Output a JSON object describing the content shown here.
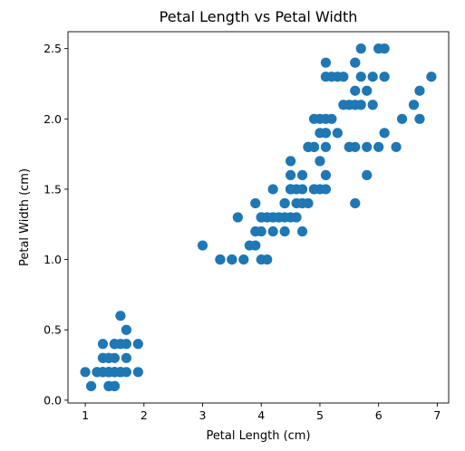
{
  "chart_data": {
    "type": "scatter",
    "title": "Petal Length vs Petal Width",
    "xlabel": "Petal Length (cm)",
    "ylabel": "Petal Width (cm)",
    "xlim": [
      0.705,
      7.195
    ],
    "ylim": [
      -0.02,
      2.62
    ],
    "xticks": [
      1,
      2,
      3,
      4,
      5,
      6,
      7
    ],
    "xtick_labels": [
      "1",
      "2",
      "3",
      "4",
      "5",
      "6",
      "7"
    ],
    "yticks": [
      0.0,
      0.5,
      1.0,
      1.5,
      2.0,
      2.5
    ],
    "ytick_labels": [
      "0.0",
      "0.5",
      "1.0",
      "1.5",
      "2.0",
      "2.5"
    ],
    "grid": false,
    "marker_color": "#1f77b4",
    "points": [
      [
        1.4,
        0.2
      ],
      [
        1.4,
        0.2
      ],
      [
        1.3,
        0.2
      ],
      [
        1.5,
        0.2
      ],
      [
        1.4,
        0.2
      ],
      [
        1.7,
        0.4
      ],
      [
        1.4,
        0.3
      ],
      [
        1.5,
        0.2
      ],
      [
        1.4,
        0.2
      ],
      [
        1.5,
        0.1
      ],
      [
        1.5,
        0.2
      ],
      [
        1.6,
        0.2
      ],
      [
        1.4,
        0.1
      ],
      [
        1.1,
        0.1
      ],
      [
        1.2,
        0.2
      ],
      [
        1.5,
        0.4
      ],
      [
        1.3,
        0.4
      ],
      [
        1.4,
        0.3
      ],
      [
        1.7,
        0.3
      ],
      [
        1.5,
        0.3
      ],
      [
        1.7,
        0.2
      ],
      [
        1.5,
        0.4
      ],
      [
        1.0,
        0.2
      ],
      [
        1.7,
        0.5
      ],
      [
        1.9,
        0.2
      ],
      [
        1.6,
        0.2
      ],
      [
        1.6,
        0.4
      ],
      [
        1.5,
        0.2
      ],
      [
        1.4,
        0.2
      ],
      [
        1.6,
        0.2
      ],
      [
        1.6,
        0.2
      ],
      [
        1.5,
        0.4
      ],
      [
        1.5,
        0.1
      ],
      [
        1.4,
        0.2
      ],
      [
        1.5,
        0.2
      ],
      [
        1.2,
        0.2
      ],
      [
        1.3,
        0.2
      ],
      [
        1.4,
        0.1
      ],
      [
        1.3,
        0.2
      ],
      [
        1.5,
        0.2
      ],
      [
        1.3,
        0.3
      ],
      [
        1.3,
        0.3
      ],
      [
        1.3,
        0.2
      ],
      [
        1.6,
        0.6
      ],
      [
        1.9,
        0.4
      ],
      [
        1.4,
        0.3
      ],
      [
        1.6,
        0.2
      ],
      [
        1.4,
        0.2
      ],
      [
        1.5,
        0.2
      ],
      [
        1.4,
        0.2
      ],
      [
        4.7,
        1.4
      ],
      [
        4.5,
        1.5
      ],
      [
        4.9,
        1.5
      ],
      [
        4.0,
        1.3
      ],
      [
        4.6,
        1.5
      ],
      [
        4.5,
        1.3
      ],
      [
        4.7,
        1.6
      ],
      [
        3.3,
        1.0
      ],
      [
        4.6,
        1.3
      ],
      [
        3.9,
        1.4
      ],
      [
        3.5,
        1.0
      ],
      [
        4.2,
        1.5
      ],
      [
        4.0,
        1.0
      ],
      [
        4.7,
        1.4
      ],
      [
        3.6,
        1.3
      ],
      [
        4.4,
        1.4
      ],
      [
        4.5,
        1.5
      ],
      [
        4.1,
        1.0
      ],
      [
        4.5,
        1.5
      ],
      [
        3.9,
        1.1
      ],
      [
        4.8,
        1.8
      ],
      [
        4.0,
        1.3
      ],
      [
        4.9,
        1.5
      ],
      [
        4.7,
        1.2
      ],
      [
        4.3,
        1.3
      ],
      [
        4.4,
        1.4
      ],
      [
        4.8,
        1.4
      ],
      [
        5.0,
        1.7
      ],
      [
        4.5,
        1.5
      ],
      [
        3.5,
        1.0
      ],
      [
        3.8,
        1.1
      ],
      [
        3.7,
        1.0
      ],
      [
        3.9,
        1.2
      ],
      [
        5.1,
        1.6
      ],
      [
        4.5,
        1.5
      ],
      [
        4.5,
        1.6
      ],
      [
        4.7,
        1.5
      ],
      [
        4.4,
        1.3
      ],
      [
        4.1,
        1.3
      ],
      [
        4.0,
        1.3
      ],
      [
        4.4,
        1.2
      ],
      [
        4.6,
        1.4
      ],
      [
        4.0,
        1.2
      ],
      [
        3.3,
        1.0
      ],
      [
        4.2,
        1.3
      ],
      [
        4.2,
        1.2
      ],
      [
        4.2,
        1.3
      ],
      [
        4.3,
        1.3
      ],
      [
        3.0,
        1.1
      ],
      [
        4.1,
        1.3
      ],
      [
        6.0,
        2.5
      ],
      [
        5.1,
        1.9
      ],
      [
        5.9,
        2.1
      ],
      [
        5.6,
        1.8
      ],
      [
        5.8,
        2.2
      ],
      [
        6.6,
        2.1
      ],
      [
        4.5,
        1.7
      ],
      [
        6.3,
        1.8
      ],
      [
        5.8,
        1.8
      ],
      [
        6.1,
        2.5
      ],
      [
        5.1,
        2.0
      ],
      [
        5.3,
        1.9
      ],
      [
        5.5,
        2.1
      ],
      [
        5.0,
        2.0
      ],
      [
        5.1,
        2.4
      ],
      [
        5.3,
        2.3
      ],
      [
        5.5,
        1.8
      ],
      [
        6.7,
        2.2
      ],
      [
        6.9,
        2.3
      ],
      [
        5.0,
        1.5
      ],
      [
        5.7,
        2.3
      ],
      [
        4.9,
        2.0
      ],
      [
        6.7,
        2.0
      ],
      [
        4.9,
        1.8
      ],
      [
        5.7,
        2.1
      ],
      [
        6.0,
        1.8
      ],
      [
        4.8,
        1.8
      ],
      [
        4.9,
        1.8
      ],
      [
        5.6,
        2.1
      ],
      [
        5.8,
        1.6
      ],
      [
        6.1,
        1.9
      ],
      [
        6.4,
        2.0
      ],
      [
        5.6,
        2.2
      ],
      [
        5.1,
        1.5
      ],
      [
        5.6,
        1.4
      ],
      [
        6.1,
        2.3
      ],
      [
        5.6,
        2.4
      ],
      [
        5.5,
        1.8
      ],
      [
        4.8,
        1.8
      ],
      [
        5.4,
        2.1
      ],
      [
        5.6,
        2.4
      ],
      [
        5.1,
        2.3
      ],
      [
        5.1,
        1.9
      ],
      [
        5.9,
        2.3
      ],
      [
        5.7,
        2.5
      ],
      [
        5.2,
        2.3
      ],
      [
        5.0,
        1.9
      ],
      [
        5.2,
        2.0
      ],
      [
        5.4,
        2.3
      ],
      [
        5.1,
        1.8
      ]
    ]
  }
}
